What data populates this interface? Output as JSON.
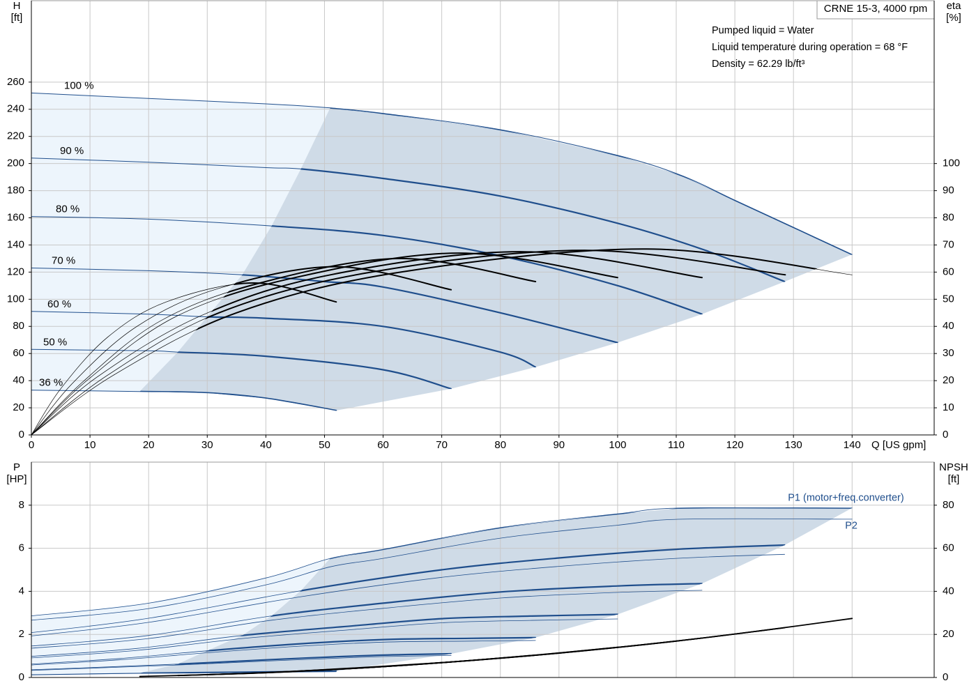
{
  "chart_data": [
    {
      "type": "pump-curve",
      "title": "CRNE 15-3, 4000 rpm",
      "annotations": [
        "Pumped liquid = Water",
        "Liquid temperature during operation = 68 °F",
        "Density = 62.29 lb/ft³"
      ],
      "ylabel": [
        "H",
        "[ft]"
      ],
      "y2label": [
        "eta",
        "[%]"
      ],
      "xlabel": "Q [US gpm]",
      "xlim": [
        0,
        154
      ],
      "xticks": [
        0,
        10,
        20,
        30,
        40,
        50,
        60,
        70,
        80,
        90,
        100,
        110,
        120,
        130,
        140
      ],
      "ylim": [
        0,
        320
      ],
      "yticks": [
        0,
        20,
        40,
        60,
        80,
        100,
        120,
        140,
        160,
        180,
        200,
        220,
        240,
        260
      ],
      "y2lim": [
        0,
        160
      ],
      "y2ticks": [
        0,
        10,
        20,
        30,
        40,
        50,
        60,
        70,
        80,
        90,
        100
      ],
      "grid": true,
      "area_colors": {
        "light": "#edf5fc",
        "operating": "#cfdbe7"
      },
      "min_flow": {
        "x": [
          51,
          46,
          41,
          36,
          30,
          25,
          18.5
        ],
        "values": [
          241,
          196,
          154,
          118,
          87,
          61,
          32
        ]
      },
      "series": [
        {
          "name": "100 %",
          "color": "#1f4e8c",
          "x": [
            0,
            20,
            40,
            51,
            60,
            80,
            100,
            111,
            120,
            130,
            140
          ],
          "values": [
            252,
            248,
            244,
            241,
            237,
            225,
            206,
            191,
            173,
            153,
            133
          ]
        },
        {
          "name": "90 %",
          "color": "#1f4e8c",
          "x": [
            0,
            20,
            40,
            46,
            60,
            80,
            100,
            115,
            128.5
          ],
          "values": [
            204,
            201,
            197,
            196,
            189,
            176,
            156,
            136,
            113
          ]
        },
        {
          "name": "80 %",
          "color": "#1f4e8c",
          "x": [
            0,
            20,
            41,
            60,
            80,
            100,
            114.4
          ],
          "values": [
            161,
            159,
            154,
            147,
            132,
            110,
            89
          ]
        },
        {
          "name": "70 %",
          "color": "#1f4e8c",
          "x": [
            0,
            20,
            36,
            50,
            60,
            80,
            100
          ],
          "values": [
            123,
            121,
            118,
            113,
            109,
            90,
            68
          ]
        },
        {
          "name": "60 %",
          "color": "#1f4e8c",
          "x": [
            0,
            20,
            30,
            40,
            60,
            80,
            86
          ],
          "values": [
            91,
            89,
            87,
            86,
            80,
            61,
            50
          ]
        },
        {
          "name": "50 %",
          "color": "#1f4e8c",
          "x": [
            0,
            20,
            25,
            40,
            60,
            71.6
          ],
          "values": [
            63,
            62,
            61,
            58,
            48,
            34
          ]
        },
        {
          "name": "36 %",
          "color": "#1f4e8c",
          "x": [
            0,
            18.5,
            30,
            40,
            52
          ],
          "values": [
            33,
            32,
            31,
            27,
            18
          ]
        }
      ],
      "eta_series": [
        {
          "color": "#000000",
          "axis": "y2",
          "x": [
            0,
            14,
            35,
            63,
            105,
            140
          ],
          "values": [
            0,
            22,
            45,
            60,
            68.5,
            59
          ]
        },
        {
          "color": "#000000",
          "axis": "y2",
          "x": [
            0,
            13,
            32,
            58,
            95,
            128.6
          ],
          "values": [
            0,
            22,
            45,
            60,
            68,
            59
          ]
        },
        {
          "color": "#000000",
          "axis": "y2",
          "x": [
            0,
            11,
            29,
            51,
            84,
            114.4
          ],
          "values": [
            0,
            21,
            44,
            59,
            67.5,
            58
          ]
        },
        {
          "color": "#000000",
          "axis": "y2",
          "x": [
            0,
            10,
            25,
            45,
            73,
            100
          ],
          "values": [
            0,
            21,
            44,
            58,
            67,
            58
          ]
        },
        {
          "color": "#000000",
          "axis": "y2",
          "x": [
            0,
            9,
            22,
            39,
            63,
            86
          ],
          "values": [
            0,
            20,
            42,
            56,
            65,
            56.5
          ]
        },
        {
          "color": "#000000",
          "axis": "y2",
          "x": [
            0,
            7,
            18,
            32,
            52,
            71.6
          ],
          "values": [
            0,
            19,
            40,
            54,
            62,
            53.5
          ]
        },
        {
          "color": "#000000",
          "axis": "y2",
          "x": [
            0,
            5,
            13,
            23,
            38,
            52
          ],
          "values": [
            0,
            17,
            36,
            49,
            56,
            49
          ]
        }
      ]
    },
    {
      "type": "power-curve",
      "ylabel": [
        "P",
        "[HP]"
      ],
      "y2label": [
        "NPSH",
        "[ft]"
      ],
      "xlim": [
        0,
        154
      ],
      "xticks": [
        0,
        10,
        20,
        30,
        40,
        50,
        60,
        70,
        80,
        90,
        100,
        110,
        120,
        130,
        140
      ],
      "xtick_labels": false,
      "ylim": [
        0,
        10
      ],
      "yticks": [
        0,
        2,
        4,
        6,
        8
      ],
      "y2lim": [
        0,
        100
      ],
      "y2ticks": [
        0,
        20,
        40,
        60,
        80
      ],
      "grid": true,
      "area_colors": {
        "light": "#edf5fc",
        "operating": "#cfdbe7"
      },
      "min_flow": {
        "x": [
          51,
          46,
          41,
          36,
          30,
          25,
          18.5
        ],
        "values": [
          5.53,
          4.03,
          2.86,
          1.95,
          1.24,
          0.62,
          0.2
        ]
      },
      "p1": {
        "name": "P1 (motor+freq.converter)",
        "color": "#1f4e8c",
        "curves": [
          {
            "x": [
              0,
              20,
              40,
              51,
              60,
              80,
              100,
              111,
              140
            ],
            "values": [
              2.86,
              3.45,
              4.62,
              5.53,
              5.95,
              6.96,
              7.6,
              7.87,
              7.87
            ]
          },
          {
            "x": [
              0,
              20,
              46,
              70,
              90,
              110,
              128.5
            ],
            "values": [
              2.08,
              2.75,
              4.03,
              5.0,
              5.55,
              5.95,
              6.15
            ]
          },
          {
            "x": [
              0,
              20,
              41,
              60,
              80,
              100,
              114.4
            ],
            "values": [
              1.46,
              1.95,
              2.86,
              3.45,
              3.97,
              4.25,
              4.36
            ]
          },
          {
            "x": [
              0,
              18,
              36,
              55,
              70,
              85,
              100
            ],
            "values": [
              0.98,
              1.35,
              1.95,
              2.4,
              2.73,
              2.85,
              2.93
            ]
          },
          {
            "x": [
              0,
              15,
              30,
              45,
              60,
              75,
              86
            ],
            "values": [
              0.62,
              0.88,
              1.24,
              1.55,
              1.76,
              1.82,
              1.85
            ]
          },
          {
            "x": [
              0,
              12,
              25,
              40,
              50,
              60,
              71.6
            ],
            "values": [
              0.36,
              0.48,
              0.62,
              0.82,
              0.94,
              1.04,
              1.1
            ]
          },
          {
            "x": [
              0,
              10,
              18.5,
              30,
              40,
              52
            ],
            "values": [
              0.13,
              0.17,
              0.2,
              0.23,
              0.26,
              0.29
            ]
          }
        ]
      },
      "p2": {
        "name": "P2",
        "color": "#1f4e8c",
        "curves": [
          {
            "x": [
              0,
              20,
              40,
              51,
              60,
              80,
              100,
              111,
              140
            ],
            "values": [
              2.66,
              3.2,
              4.3,
              5.14,
              5.53,
              6.47,
              7.07,
              7.35,
              7.35
            ]
          },
          {
            "x": [
              0,
              20,
              46,
              70,
              90,
              110,
              128.5
            ],
            "values": [
              1.93,
              2.56,
              3.75,
              4.65,
              5.16,
              5.53,
              5.72
            ]
          },
          {
            "x": [
              0,
              20,
              41,
              60,
              80,
              100,
              114.4
            ],
            "values": [
              1.36,
              1.81,
              2.66,
              3.21,
              3.69,
              3.95,
              4.05
            ]
          },
          {
            "x": [
              0,
              18,
              36,
              55,
              70,
              85,
              100
            ],
            "values": [
              0.91,
              1.26,
              1.81,
              2.23,
              2.54,
              2.65,
              2.72
            ]
          },
          {
            "x": [
              0,
              15,
              30,
              45,
              60,
              75,
              86
            ],
            "values": [
              0.58,
              0.82,
              1.15,
              1.44,
              1.64,
              1.69,
              1.72
            ]
          },
          {
            "x": [
              0,
              12,
              25,
              40,
              50,
              60,
              71.6
            ],
            "values": [
              0.33,
              0.45,
              0.58,
              0.76,
              0.87,
              0.97,
              1.02
            ]
          },
          {
            "x": [
              0,
              10,
              18.5,
              30,
              40,
              52
            ],
            "values": [
              0.12,
              0.16,
              0.19,
              0.21,
              0.24,
              0.27
            ]
          }
        ]
      },
      "npsh": {
        "color": "#000000",
        "axis": "y2",
        "curves": [
          {
            "x": [
              51,
              70,
              90,
              110,
              125,
              140
            ],
            "values": [
              3.6,
              6.9,
              11.3,
              16.9,
              21.9,
              27.4
            ]
          },
          {
            "x": [
              46,
              70,
              90,
              110,
              128.5
            ],
            "values": [
              3.0,
              6.9,
              11.3,
              16.9,
              23.1
            ]
          },
          {
            "x": [
              41,
              60,
              80,
              100,
              114.4
            ],
            "values": [
              2.4,
              5.0,
              9.0,
              14.0,
              18.3
            ]
          },
          {
            "x": [
              36,
              55,
              70,
              85,
              100
            ],
            "values": [
              1.8,
              4.2,
              6.9,
              10.1,
              14.0
            ]
          },
          {
            "x": [
              30,
              45,
              60,
              75,
              86
            ],
            "values": [
              1.3,
              2.8,
              5.0,
              7.9,
              10.4
            ]
          },
          {
            "x": [
              25,
              40,
              50,
              60,
              71.6
            ],
            "values": [
              0.9,
              2.2,
              3.5,
              5.0,
              7.2
            ]
          },
          {
            "x": [
              18.5,
              30,
              40,
              52
            ],
            "values": [
              0.5,
              1.3,
              2.2,
              3.8
            ]
          }
        ]
      }
    }
  ]
}
